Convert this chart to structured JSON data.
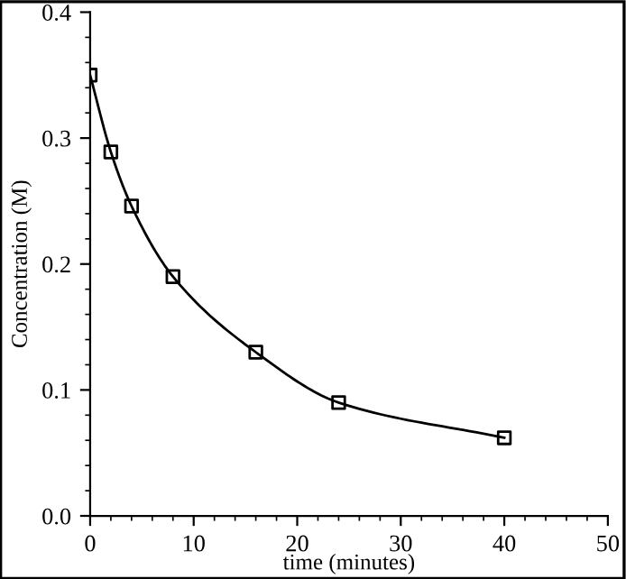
{
  "chart_data": {
    "type": "line",
    "xlabel": "time (minutes)",
    "ylabel": "Concentration (M)",
    "x": [
      0,
      2,
      4,
      8,
      16,
      24,
      40
    ],
    "series": [
      {
        "type": "scatter",
        "color": "#000000",
        "marker": "square",
        "values": [
          0.35,
          0.289,
          0.246,
          0.19,
          0.13,
          0.09,
          0.062
        ]
      },
      {
        "color": "#000000",
        "line_style": "solid",
        "values": [
          0.35,
          0.289,
          0.246,
          0.19,
          0.13,
          0.09,
          0.062
        ]
      }
    ],
    "xlim": [
      0,
      50
    ],
    "xticks": [
      0,
      10,
      20,
      30,
      40,
      50
    ],
    "ylim": [
      0,
      0.4
    ],
    "yticks": [
      {
        "value": 0,
        "label": "0.0"
      },
      0.1,
      0.2,
      0.3,
      0.4
    ],
    "grid": false,
    "legend": false
  }
}
